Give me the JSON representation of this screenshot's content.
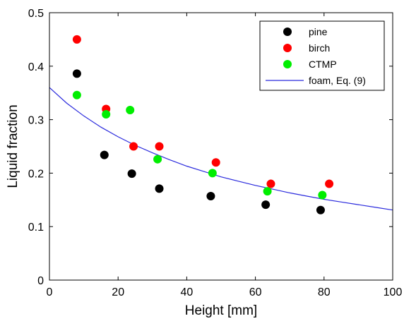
{
  "chart_data": {
    "type": "scatter",
    "title": "",
    "xlabel": "Height [mm]",
    "ylabel": "Liquid fraction",
    "xlim": [
      0,
      100
    ],
    "ylim": [
      0,
      0.5
    ],
    "xticks": [
      0,
      20,
      40,
      60,
      80,
      100
    ],
    "yticks": [
      0,
      0.1,
      0.2,
      0.3,
      0.4,
      0.5
    ],
    "xtick_labels": [
      "0",
      "20",
      "40",
      "60",
      "80",
      "100"
    ],
    "ytick_labels": [
      "0",
      "0.1",
      "0.2",
      "0.3",
      "0.4",
      "0.5"
    ],
    "grid": false,
    "legend_position": "top-right",
    "series": [
      {
        "name": "pine",
        "kind": "markers",
        "color": "#000000",
        "points": [
          [
            8,
            0.386
          ],
          [
            16,
            0.234
          ],
          [
            24,
            0.199
          ],
          [
            32,
            0.171
          ],
          [
            47,
            0.157
          ],
          [
            63,
            0.141
          ],
          [
            79,
            0.131
          ]
        ]
      },
      {
        "name": "birch",
        "kind": "markers",
        "color": "#ff0000",
        "points": [
          [
            8,
            0.45
          ],
          [
            16.5,
            0.32
          ],
          [
            24.5,
            0.25
          ],
          [
            32,
            0.25
          ],
          [
            48.5,
            0.22
          ],
          [
            64.5,
            0.18
          ],
          [
            81.5,
            0.18
          ]
        ]
      },
      {
        "name": "CTMP",
        "kind": "markers",
        "color": "#00ee00",
        "points": [
          [
            8,
            0.346
          ],
          [
            16.5,
            0.31
          ],
          [
            23.5,
            0.318
          ],
          [
            31.5,
            0.226
          ],
          [
            47.5,
            0.2
          ],
          [
            63.5,
            0.166
          ],
          [
            79.5,
            0.159
          ]
        ]
      },
      {
        "name": "foam, Eq. (9)",
        "kind": "line",
        "color": "#2b2bdd",
        "points": [
          [
            0,
            0.36
          ],
          [
            5,
            0.331
          ],
          [
            10,
            0.307
          ],
          [
            15,
            0.286
          ],
          [
            20,
            0.268
          ],
          [
            25,
            0.252
          ],
          [
            30,
            0.238
          ],
          [
            35,
            0.225
          ],
          [
            40,
            0.213
          ],
          [
            45,
            0.203
          ],
          [
            50,
            0.193
          ],
          [
            55,
            0.185
          ],
          [
            60,
            0.177
          ],
          [
            65,
            0.17
          ],
          [
            70,
            0.163
          ],
          [
            75,
            0.157
          ],
          [
            80,
            0.151
          ],
          [
            85,
            0.146
          ],
          [
            90,
            0.141
          ],
          [
            95,
            0.136
          ],
          [
            100,
            0.131
          ]
        ]
      }
    ]
  }
}
